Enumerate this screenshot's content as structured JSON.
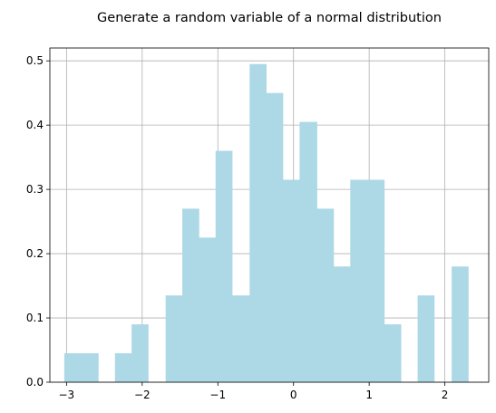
{
  "chart_data": {
    "type": "bar",
    "title": "Generate a random variable of a normal distribution",
    "xlabel": "",
    "ylabel": "",
    "xlim": [
      -3.22,
      2.58
    ],
    "ylim": [
      0,
      0.52
    ],
    "xticks": [
      -3,
      -2,
      -1,
      0,
      1,
      2
    ],
    "yticks": [
      0.0,
      0.1,
      0.2,
      0.3,
      0.4,
      0.5
    ],
    "xtick_labels": [
      "−3",
      "−2",
      "−1",
      "0",
      "1",
      "2"
    ],
    "ytick_labels": [
      "0.0",
      "0.1",
      "0.2",
      "0.3",
      "0.4",
      "0.5"
    ],
    "grid": true,
    "bar_color": "#add8e6",
    "grid_color": "#b0b0b0",
    "bin_edges": [
      -3.03,
      -2.81,
      -2.58,
      -2.36,
      -2.14,
      -1.92,
      -1.69,
      -1.47,
      -1.25,
      -1.03,
      -0.81,
      -0.58,
      -0.36,
      -0.14,
      0.08,
      0.31,
      0.53,
      0.75,
      0.97,
      1.2,
      1.42,
      1.64,
      1.86,
      2.09,
      2.31
    ],
    "values": [
      0.045,
      0.045,
      0.0,
      0.045,
      0.09,
      0.0,
      0.135,
      0.27,
      0.225,
      0.36,
      0.135,
      0.495,
      0.45,
      0.315,
      0.405,
      0.27,
      0.18,
      0.315,
      0.315,
      0.09,
      0.0,
      0.135,
      0.0,
      0.18
    ]
  }
}
